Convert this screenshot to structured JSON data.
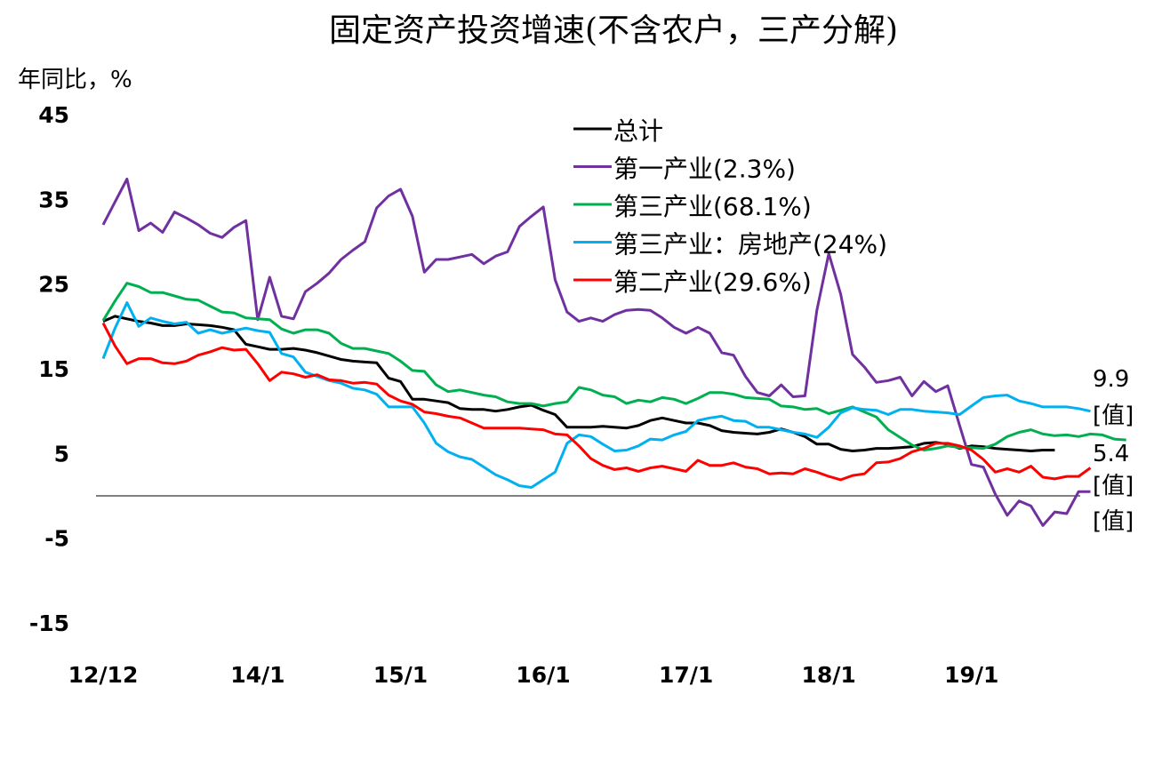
{
  "chart_data": {
    "type": "line",
    "title": "固定资产投资增速(不含农户，三产分解)",
    "ylabel": "年同比，%",
    "xlabel": "",
    "ylim": [
      -15,
      45
    ],
    "yticks": [
      45,
      35,
      25,
      15,
      5,
      -5,
      -15
    ],
    "xticks": [
      {
        "label": "12/12",
        "index": 0
      },
      {
        "label": "14/1",
        "index": 13
      },
      {
        "label": "15/1",
        "index": 25
      },
      {
        "label": "16/1",
        "index": 37
      },
      {
        "label": "17/1",
        "index": 49
      },
      {
        "label": "18/1",
        "index": 61
      },
      {
        "label": "19/1",
        "index": 73
      }
    ],
    "zero_line": 0,
    "series": [
      {
        "name": "总计",
        "color": "#000000",
        "legend": "总计",
        "values": [
          20.6,
          21.2,
          20.9,
          20.6,
          20.4,
          20.1,
          20.1,
          20.3,
          20.2,
          20.1,
          19.9,
          19.6,
          17.9,
          17.6,
          17.3,
          17.3,
          17.4,
          17.2,
          16.9,
          16.5,
          16.1,
          15.9,
          15.8,
          15.7,
          13.9,
          13.5,
          11.4,
          11.4,
          11.2,
          11.0,
          10.3,
          10.2,
          10.2,
          10.0,
          10.2,
          10.5,
          10.7,
          10.1,
          9.6,
          8.1,
          8.1,
          8.1,
          8.2,
          8.1,
          8.0,
          8.3,
          8.9,
          9.2,
          8.9,
          8.6,
          8.6,
          8.3,
          7.7,
          7.5,
          7.4,
          7.3,
          7.5,
          7.9,
          7.5,
          7.0,
          6.1,
          6.1,
          5.5,
          5.3,
          5.4,
          5.6,
          5.6,
          5.7,
          5.8,
          6.2,
          6.3,
          6.1,
          5.6,
          5.9,
          5.8,
          5.6,
          5.5,
          5.4,
          5.3,
          5.4,
          5.4
        ]
      },
      {
        "name": "第一产业",
        "color": "#7030a0",
        "legend": "第一产业(2.3%)",
        "values": [
          32.0,
          34.7,
          37.4,
          31.3,
          32.2,
          31.1,
          33.5,
          32.8,
          32.0,
          31.0,
          30.5,
          31.7,
          32.5,
          20.8,
          25.8,
          21.2,
          20.9,
          24.1,
          25.1,
          26.3,
          27.9,
          29.0,
          30.0,
          34.0,
          35.4,
          36.2,
          33.0,
          26.4,
          27.9,
          27.9,
          28.2,
          28.5,
          27.4,
          28.3,
          28.8,
          31.8,
          33.0,
          34.1,
          25.5,
          21.7,
          20.6,
          21.0,
          20.6,
          21.4,
          21.9,
          22.0,
          21.9,
          21.0,
          19.9,
          19.2,
          19.9,
          19.2,
          16.9,
          16.6,
          14.1,
          12.2,
          11.8,
          13.1,
          11.7,
          11.8,
          21.9,
          28.6,
          23.8,
          16.7,
          15.2,
          13.4,
          13.6,
          14.0,
          11.8,
          13.5,
          12.3,
          13.0,
          8.3,
          3.7,
          3.4,
          0.2,
          -2.3,
          -0.6,
          -1.2,
          -3.5,
          -1.9,
          -2.1,
          0.5,
          0.5
        ]
      },
      {
        "name": "第三产业",
        "color": "#00b050",
        "legend": "第三产业(68.1%)",
        "values": [
          20.7,
          23.0,
          25.1,
          24.7,
          24.0,
          24.0,
          23.6,
          23.2,
          23.1,
          22.4,
          21.7,
          21.6,
          21.0,
          20.9,
          20.8,
          19.7,
          19.2,
          19.6,
          19.6,
          19.2,
          18.0,
          17.4,
          17.4,
          17.1,
          16.8,
          15.9,
          14.8,
          14.7,
          13.1,
          12.3,
          12.5,
          12.2,
          11.9,
          11.7,
          11.1,
          10.9,
          10.9,
          10.6,
          10.9,
          11.1,
          12.8,
          12.5,
          11.9,
          11.7,
          10.9,
          11.3,
          11.1,
          11.6,
          11.4,
          10.9,
          11.5,
          12.2,
          12.2,
          12.0,
          11.6,
          11.5,
          11.4,
          10.6,
          10.5,
          10.2,
          10.3,
          9.7,
          10.1,
          10.5,
          9.9,
          9.3,
          7.8,
          6.9,
          6.0,
          5.4,
          5.6,
          5.9,
          5.7,
          5.7,
          5.6,
          6.1,
          7.0,
          7.5,
          7.8,
          7.3,
          7.1,
          7.2,
          7.0,
          7.3,
          7.2,
          6.7,
          6.6
        ]
      },
      {
        "name": "第三产业：房地产",
        "color": "#00b0f0",
        "legend": "第三产业：房地产(24%)",
        "values": [
          16.2,
          19.8,
          22.8,
          20.0,
          21.0,
          20.6,
          20.3,
          20.5,
          19.2,
          19.6,
          19.2,
          19.5,
          19.8,
          19.5,
          19.3,
          16.8,
          16.4,
          14.6,
          14.1,
          13.6,
          13.3,
          12.7,
          12.5,
          12.0,
          10.5,
          10.5,
          10.5,
          8.6,
          6.2,
          5.2,
          4.6,
          4.3,
          3.4,
          2.5,
          1.9,
          1.2,
          1.0,
          1.9,
          2.8,
          6.2,
          7.2,
          7.0,
          6.1,
          5.3,
          5.4,
          5.9,
          6.7,
          6.6,
          7.2,
          7.6,
          8.9,
          9.2,
          9.4,
          8.9,
          8.8,
          8.1,
          8.1,
          7.8,
          7.5,
          7.3,
          6.9,
          8.1,
          9.8,
          10.4,
          10.2,
          10.1,
          9.6,
          10.2,
          10.2,
          10.0,
          9.9,
          9.8,
          9.6,
          10.6,
          11.6,
          11.8,
          11.9,
          11.2,
          10.9,
          10.5,
          10.5,
          10.5,
          10.3,
          10.0
        ]
      },
      {
        "name": "第二产业",
        "color": "#ff0000",
        "legend": "第二产业(29.6%)",
        "values": [
          20.4,
          17.7,
          15.6,
          16.2,
          16.2,
          15.7,
          15.6,
          15.9,
          16.6,
          17.0,
          17.5,
          17.2,
          17.3,
          15.6,
          13.6,
          14.6,
          14.4,
          14.0,
          14.3,
          13.7,
          13.6,
          13.3,
          13.4,
          13.2,
          11.9,
          11.2,
          10.8,
          9.9,
          9.7,
          9.4,
          9.2,
          8.6,
          8.0,
          8.0,
          8.0,
          8.0,
          7.9,
          7.8,
          7.3,
          7.2,
          5.9,
          4.4,
          3.6,
          3.1,
          3.3,
          2.9,
          3.3,
          3.5,
          3.2,
          2.9,
          4.2,
          3.6,
          3.6,
          3.9,
          3.4,
          3.2,
          2.6,
          2.7,
          2.6,
          3.2,
          2.8,
          2.3,
          1.9,
          2.4,
          2.6,
          3.9,
          4.0,
          4.4,
          5.2,
          5.6,
          6.2,
          6.2,
          5.9,
          5.4,
          4.3,
          2.8,
          3.2,
          2.8,
          3.5,
          2.2,
          2.0,
          2.3,
          2.3,
          3.3
        ]
      }
    ],
    "end_labels": [
      {
        "text": "9.9"
      },
      {
        "text": "[值]"
      },
      {
        "text": "5.4"
      },
      {
        "text": "[值]"
      },
      {
        "text": "[值]"
      }
    ],
    "legend_position": "top-center"
  }
}
